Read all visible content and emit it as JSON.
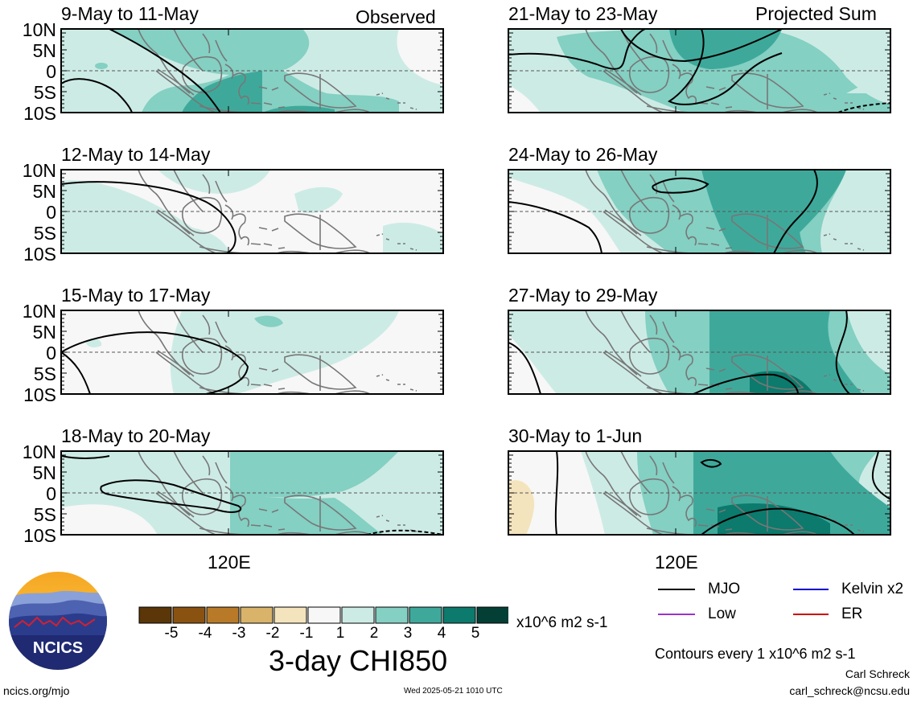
{
  "header": {
    "left_label": "Observed",
    "right_label": "Projected Sum"
  },
  "panels_left": [
    {
      "title": "9-May to 11-May"
    },
    {
      "title": "12-May to 14-May"
    },
    {
      "title": "15-May to 17-May"
    },
    {
      "title": "18-May to 20-May"
    }
  ],
  "panels_right": [
    {
      "title": "21-May to 23-May"
    },
    {
      "title": "24-May to 26-May"
    },
    {
      "title": "27-May to 29-May"
    },
    {
      "title": "30-May to 1-Jun"
    }
  ],
  "y_ticks": [
    "10N",
    "5N",
    "0",
    "5S",
    "10S"
  ],
  "x_tick": "120E",
  "colorbar": {
    "ticks": [
      "-5",
      "-4",
      "-3",
      "-2",
      "-1",
      "1",
      "2",
      "3",
      "4",
      "5"
    ],
    "colors": [
      "#5a3608",
      "#8a5210",
      "#b87a28",
      "#d9b36a",
      "#f3e4bd",
      "#f7f7f7",
      "#cdebe5",
      "#84d0c3",
      "#3ea99a",
      "#0c7a6c",
      "#033f35"
    ],
    "units": "x10^6 m2 s-1",
    "title": "3-day CHI850"
  },
  "legend": {
    "items": [
      {
        "label": "MJO",
        "color": "#000000"
      },
      {
        "label": "Kelvin x2",
        "color": "#0000cc"
      },
      {
        "label": "Low",
        "color": "#9933cc"
      },
      {
        "label": "ER",
        "color": "#cc0000"
      }
    ],
    "contours_note": "Contours every 1 x10^6 m2 s-1"
  },
  "logo": {
    "text": "NCICS"
  },
  "footer": {
    "url": "ncics.org/mjo",
    "timestamp": "Wed 2025-05-21 1010 UTC",
    "author": "Carl Schreck",
    "email": "carl_schreck@ncsu.edu"
  },
  "chart_data": {
    "type": "heatmap",
    "variable": "3-day CHI850",
    "units": "x10^6 m2 s-1",
    "y_range": [
      "10S",
      "10N"
    ],
    "x_label_shown": "120E",
    "observed": [
      {
        "period": "9-May to 11-May",
        "dominant_level": 2
      },
      {
        "period": "12-May to 14-May",
        "dominant_level": 1
      },
      {
        "period": "15-May to 17-May",
        "dominant_level": 1
      },
      {
        "period": "18-May to 20-May",
        "dominant_level": 2
      }
    ],
    "projected_sum": [
      {
        "period": "21-May to 23-May",
        "dominant_level": 2
      },
      {
        "period": "24-May to 26-May",
        "dominant_level": 3
      },
      {
        "period": "27-May to 29-May",
        "dominant_level": 3
      },
      {
        "period": "30-May to 1-Jun",
        "dominant_level": 4
      }
    ]
  }
}
